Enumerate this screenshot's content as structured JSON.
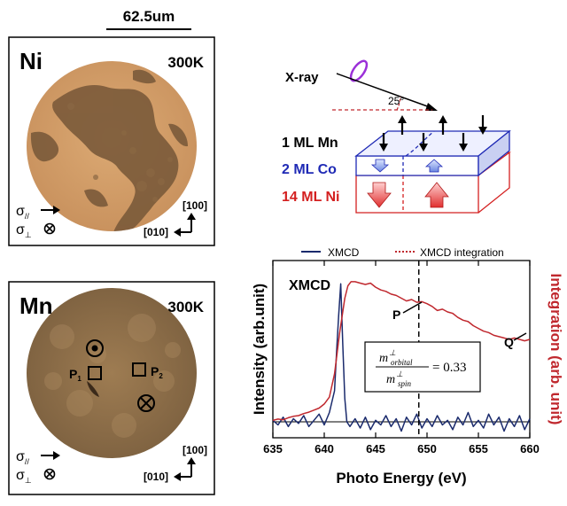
{
  "scale_bar": {
    "label": "62.5um"
  },
  "panel_ni": {
    "element": "Ni",
    "temperature": "300K",
    "sigma_par": "σ",
    "sigma_par_sub": "//",
    "sigma_perp": "σ",
    "sigma_perp_sub": "⊥",
    "axis_100": "[100]",
    "axis_010": "[010]"
  },
  "panel_mn": {
    "element": "Mn",
    "temperature": "300K",
    "p1": "P",
    "p1_sub": "1",
    "p2": "P",
    "p2_sub": "2",
    "sigma_par": "σ",
    "sigma_par_sub": "//",
    "sigma_perp": "σ",
    "sigma_perp_sub": "⊥",
    "axis_100": "[100]",
    "axis_010": "[010]"
  },
  "schematic": {
    "xray_label": "X-ray",
    "angle_label": "25°",
    "layer_mn": "1 ML Mn",
    "layer_co": "2 ML Co",
    "layer_ni": "14 ML Ni",
    "colors": {
      "mn": "#000000",
      "co": "#1f2ab5",
      "ni": "#d42020"
    }
  },
  "chart_data": {
    "type": "line",
    "title": "",
    "inset_label": "XMCD",
    "xlabel": "Photo Energy (eV)",
    "ylabel_left": "Intensity (arb.unit)",
    "ylabel_right": "Integration (arb. unit)",
    "xlim": [
      635,
      660
    ],
    "x_ticks": [
      "635",
      "640",
      "645",
      "650",
      "655",
      "660"
    ],
    "legend": [
      {
        "name": "XMCD",
        "color": "#1a2a6c",
        "style": "solid"
      },
      {
        "name": "XMCD integration",
        "color": "#c0282e",
        "style": "dotted"
      }
    ],
    "marker_line_x": 649.2,
    "annotations": {
      "P": "P",
      "Q": "Q"
    },
    "equation": {
      "num": "m",
      "num_sup": "⊥",
      "num_sub": "orbital",
      "den": "m",
      "den_sup": "⊥",
      "den_sub": "spin",
      "value": "= 0.33"
    },
    "series": [
      {
        "name": "XMCD",
        "color": "#1a2a6c",
        "x": [
          635,
          635.5,
          636,
          636.5,
          637,
          637.5,
          638,
          638.5,
          639,
          639.5,
          640,
          640.5,
          641,
          641.2,
          641.4,
          641.6,
          641.8,
          642,
          642.2,
          642.5,
          643,
          643.5,
          644,
          644.5,
          645,
          645.5,
          646,
          646.5,
          647,
          647.5,
          648,
          648.5,
          649,
          649.5,
          650,
          650.5,
          651,
          651.5,
          652,
          652.5,
          653,
          653.5,
          654,
          654.5,
          655,
          655.5,
          656,
          656.5,
          657,
          657.5,
          658,
          658.5,
          659,
          659.5,
          660
        ],
        "y": [
          0.1,
          -0.2,
          0.3,
          -0.3,
          0.2,
          -0.1,
          0.4,
          -0.3,
          0.1,
          0.5,
          -0.2,
          0.6,
          2.0,
          4.5,
          6.8,
          8.9,
          5.0,
          1.5,
          0.0,
          -0.3,
          0.2,
          -0.4,
          0.3,
          -0.5,
          0.1,
          -0.2,
          0.4,
          -0.3,
          0.2,
          -0.6,
          0.3,
          -0.2,
          0.5,
          -0.4,
          0.2,
          -0.3,
          0.4,
          -0.2,
          0.1,
          -0.5,
          0.3,
          -0.2,
          0.6,
          -0.3,
          0.1,
          -0.4,
          0.5,
          -0.2,
          0.3,
          -0.6,
          0.2,
          -0.3,
          0.4,
          -0.5,
          0.2
        ]
      },
      {
        "name": "XMCD integration",
        "color": "#c0282e",
        "x": [
          635,
          635.5,
          636,
          636.5,
          637,
          637.5,
          638,
          638.5,
          639,
          639.5,
          640,
          640.5,
          641,
          641.5,
          642,
          642.3,
          642.6,
          643,
          643.5,
          644,
          644.5,
          645,
          645.5,
          646,
          646.5,
          647,
          647.5,
          648,
          648.5,
          649,
          649.5,
          650,
          650.5,
          651,
          651.5,
          652,
          652.5,
          653,
          653.5,
          654,
          654.5,
          655,
          655.5,
          656,
          656.5,
          657,
          657.5,
          658,
          658.5,
          659,
          659.5,
          660
        ],
        "y": [
          0.1,
          0.2,
          0.15,
          0.3,
          0.4,
          0.45,
          0.6,
          0.7,
          0.85,
          1.0,
          1.3,
          1.8,
          3.5,
          6.5,
          9.0,
          9.9,
          10.2,
          10.2,
          10.1,
          10.0,
          10.1,
          9.8,
          9.6,
          9.5,
          9.3,
          9.2,
          9.0,
          8.8,
          8.9,
          8.7,
          8.75,
          8.6,
          8.4,
          8.1,
          8.2,
          8.0,
          7.9,
          7.6,
          7.4,
          7.3,
          7.0,
          6.8,
          6.6,
          6.5,
          6.3,
          6.2,
          6.1,
          6.0,
          6.1,
          6.0,
          5.9,
          6.0
        ]
      }
    ]
  }
}
